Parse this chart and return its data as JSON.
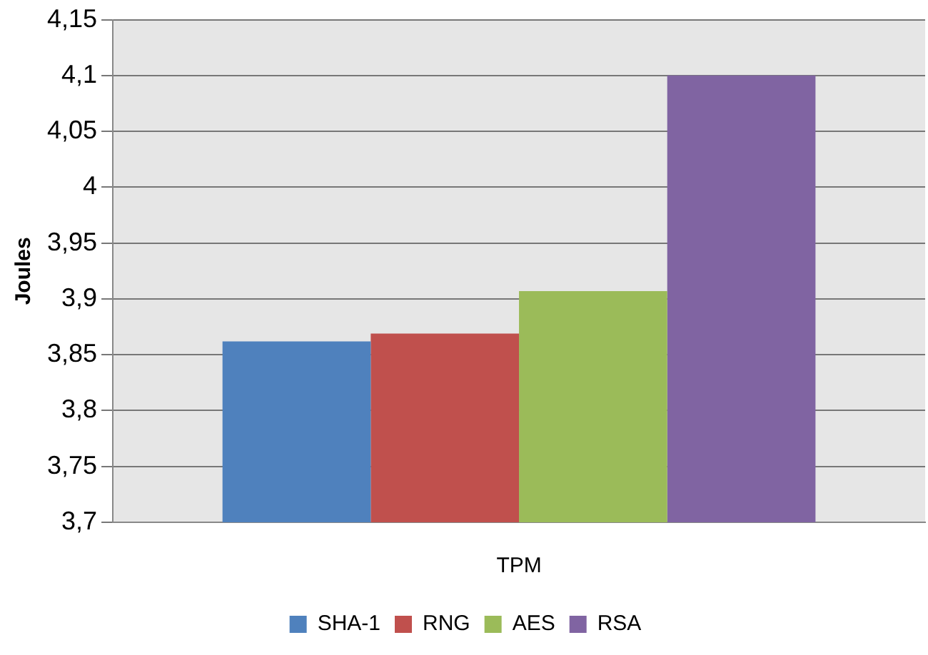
{
  "chart_data": {
    "type": "bar",
    "ylabel": "Joules",
    "categories": [
      "TPM"
    ],
    "series": [
      {
        "name": "SHA-1",
        "color": "#4f81bd",
        "values": [
          3.862
        ]
      },
      {
        "name": "RNG",
        "color": "#c0504d",
        "values": [
          3.869
        ]
      },
      {
        "name": "AES",
        "color": "#9bbb59",
        "values": [
          3.907
        ]
      },
      {
        "name": "RSA",
        "color": "#8064a2",
        "values": [
          4.1
        ]
      }
    ],
    "ylim": [
      3.7,
      4.15
    ],
    "yticks": [
      {
        "value": 3.7,
        "label": "3,7"
      },
      {
        "value": 3.75,
        "label": "3,75"
      },
      {
        "value": 3.8,
        "label": "3,8"
      },
      {
        "value": 3.85,
        "label": "3,85"
      },
      {
        "value": 3.9,
        "label": "3,9"
      },
      {
        "value": 3.95,
        "label": "3,95"
      },
      4,
      {
        "value": 4.05,
        "label": "4,05"
      },
      {
        "value": 4.1,
        "label": "4,1"
      },
      {
        "value": 4.15,
        "label": "4,15"
      }
    ],
    "grid": "y",
    "legend": "bottom"
  }
}
